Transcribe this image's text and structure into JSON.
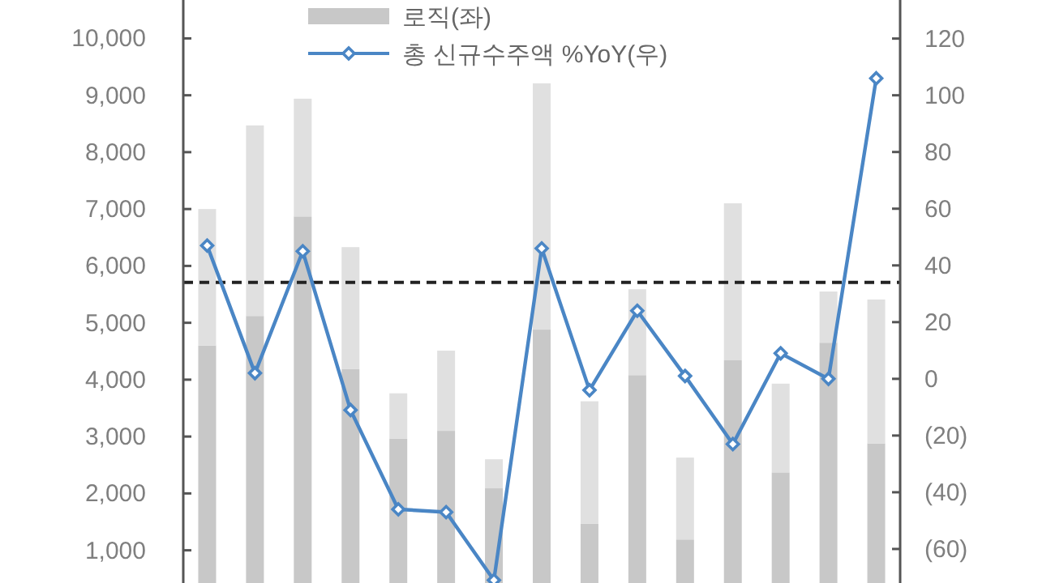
{
  "chart_data": {
    "type": "bar",
    "stacked": true,
    "legend": "top",
    "marker": "diamond",
    "categories": [
      null,
      null,
      null,
      null,
      null,
      null,
      null,
      null,
      null,
      null,
      null,
      null,
      null,
      null,
      null
    ],
    "series": [
      {
        "name": "로직(좌)",
        "color": "#c8c8c8",
        "values": [
          4600,
          5120,
          6870,
          4190,
          2960,
          3100,
          2090,
          4880,
          1470,
          4080,
          1190,
          4340,
          2370,
          4650,
          2880
        ]
      },
      {
        "color": "#e0e0e0",
        "values": [
          2400,
          3350,
          2070,
          2140,
          800,
          1410,
          510,
          4330,
          2150,
          1510,
          1440,
          2760,
          1560,
          900,
          2530
        ]
      },
      {
        "name": "총 신규수주액 %YoY(우)",
        "type": "line",
        "axis": "y2",
        "color": "#4a86c5",
        "values": [
          47,
          2,
          45,
          -11,
          -46,
          -47,
          -71,
          46,
          -4,
          24,
          1,
          -23,
          9,
          0,
          106
        ]
      }
    ],
    "ylim": [
      425,
      10675
    ],
    "yticks": [
      {
        "value": 1000,
        "label": "1,000"
      },
      {
        "value": 2000,
        "label": "2,000"
      },
      {
        "value": 3000,
        "label": "3,000"
      },
      {
        "value": 4000,
        "label": "4,000"
      },
      {
        "value": 5000,
        "label": "5,000"
      },
      {
        "value": 6000,
        "label": "6,000"
      },
      {
        "value": 7000,
        "label": "7,000"
      },
      {
        "value": 8000,
        "label": "8,000"
      },
      {
        "value": 9000,
        "label": "9,000"
      },
      {
        "value": 10000,
        "label": "10,000"
      }
    ],
    "y2lim": [
      -72,
      133.6
    ],
    "y2ticks": [
      {
        "value": -60,
        "label": "(60)"
      },
      {
        "value": -40,
        "label": "(40)"
      },
      {
        "value": -20,
        "label": "(20)"
      },
      0,
      20,
      40,
      60,
      80,
      100,
      120
    ],
    "ref_lines": [
      {
        "axis": "y2",
        "value": 34,
        "color": "#222222",
        "line_style": "dashed"
      }
    ]
  }
}
